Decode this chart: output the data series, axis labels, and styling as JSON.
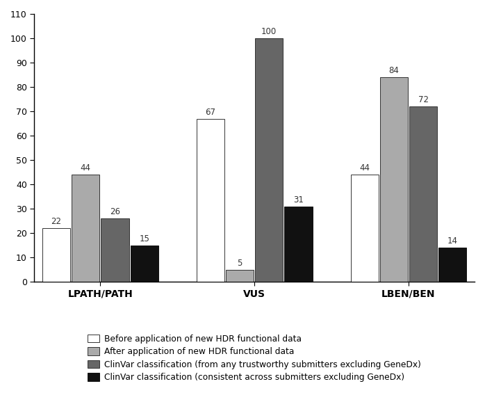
{
  "categories": [
    "LPATH/PATH",
    "VUS",
    "LBEN/BEN"
  ],
  "series": [
    {
      "label": "Before application of new HDR functional data",
      "color": "#FFFFFF",
      "edgecolor": "#333333",
      "values": [
        22,
        67,
        44
      ]
    },
    {
      "label": "After application of new HDR functional data",
      "color": "#AAAAAA",
      "edgecolor": "#333333",
      "values": [
        44,
        5,
        84
      ]
    },
    {
      "label": "ClinVar classification (from any trustworthy submitters excluding GeneDx)",
      "color": "#666666",
      "edgecolor": "#333333",
      "values": [
        26,
        100,
        72
      ]
    },
    {
      "label": "ClinVar classification (consistent across submitters excluding GeneDx)",
      "color": "#111111",
      "edgecolor": "#111111",
      "values": [
        15,
        31,
        14
      ]
    }
  ],
  "ylim": [
    0,
    110
  ],
  "yticks": [
    0,
    10,
    20,
    30,
    40,
    50,
    60,
    70,
    80,
    90,
    100,
    110
  ],
  "bar_width": 0.19,
  "group_centers": [
    0.35,
    1.4,
    2.45
  ],
  "label_fontsize": 8.5,
  "tick_fontsize": 9,
  "category_fontsize": 10,
  "legend_fontsize": 8.8,
  "background_color": "#FFFFFF",
  "xlim": [
    -0.1,
    2.9
  ]
}
